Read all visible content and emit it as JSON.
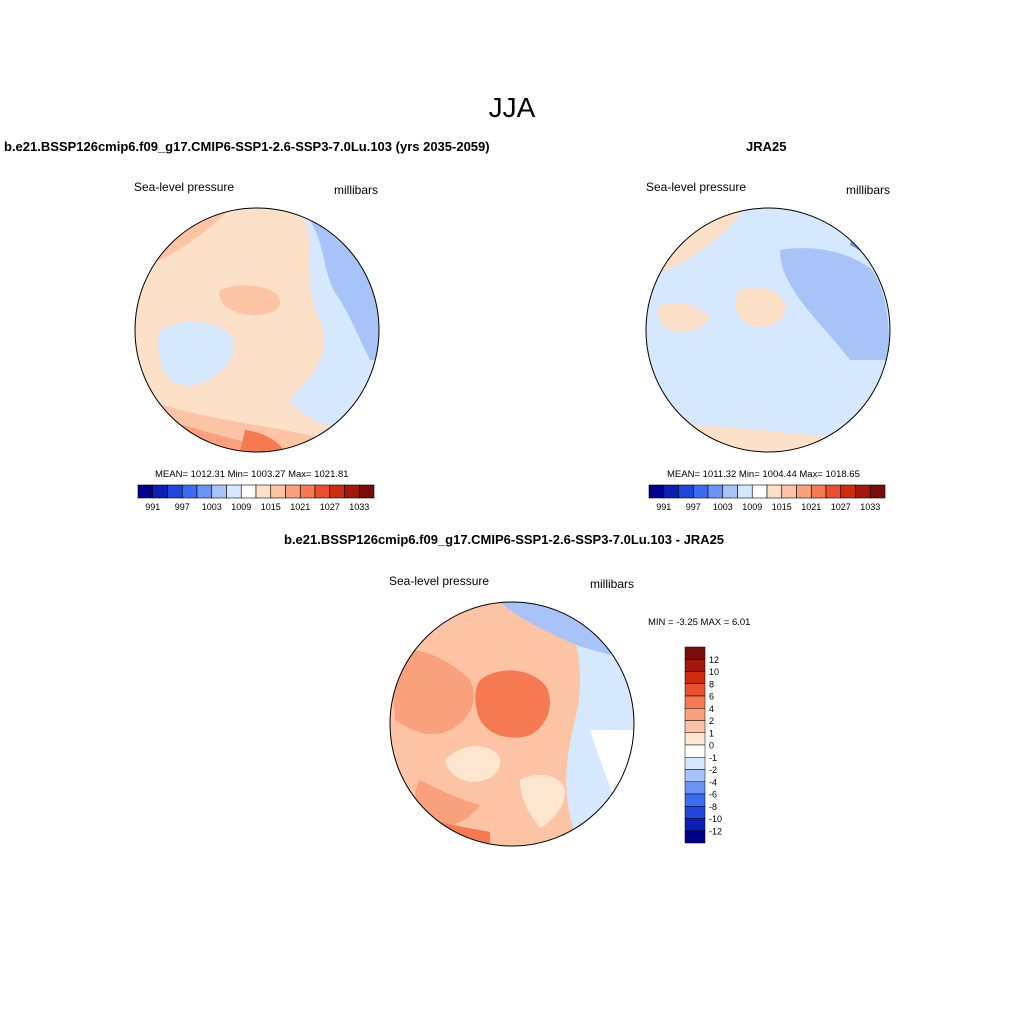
{
  "title": "JJA",
  "panels": {
    "model": {
      "title": "b.e21.BSSP126cmip6.f09_g17.CMIP6-SSP1-2.6-SSP3-7.0Lu.103 (yrs 2035-2059)",
      "variable": "Sea-level pressure",
      "units": "millibars",
      "stats": "MEAN= 1012.31   Min= 1003.27   Max= 1021.81"
    },
    "obs": {
      "title": "JRA25",
      "variable": "Sea-level pressure",
      "units": "millibars",
      "stats": "MEAN= 1011.32   Min= 1004.44   Max= 1018.65"
    },
    "diff": {
      "title": "b.e21.BSSP126cmip6.f09_g17.CMIP6-SSP1-2.6-SSP3-7.0Lu.103 - JRA25",
      "variable": "Sea-level pressure",
      "units": "millibars",
      "stats": "MIN =  -3.25 MAX =   6.01"
    }
  },
  "colorbars": {
    "absolute": {
      "colors": [
        "#00008c",
        "#0a1fb4",
        "#1f45dc",
        "#3a6cf2",
        "#6b93f5",
        "#a7c3f8",
        "#d6e8fd",
        "#ffffff",
        "#fde0c8",
        "#fcc3a4",
        "#f9a07c",
        "#f57a52",
        "#ea502e",
        "#cf2c0e",
        "#a3180a",
        "#7a0c0a"
      ],
      "labels": [
        "991",
        "997",
        "1003",
        "1009",
        "1015",
        "1021",
        "1027",
        "1033"
      ]
    },
    "difference": {
      "colors": [
        "#00008c",
        "#0a1fb4",
        "#1f45dc",
        "#3a6cf2",
        "#6b93f5",
        "#a7c3f8",
        "#d6e8fd",
        "#ffffff",
        "#fde6d0",
        "#fcc3a4",
        "#f9a07c",
        "#f57a52",
        "#ea502e",
        "#cf2c0e",
        "#a3180a",
        "#7a0c0a"
      ],
      "labels": [
        "12",
        "10",
        "8",
        "6",
        "4",
        "2",
        "1",
        "0",
        "-1",
        "-2",
        "-4",
        "-6",
        "-8",
        "-10",
        "-12"
      ]
    }
  }
}
